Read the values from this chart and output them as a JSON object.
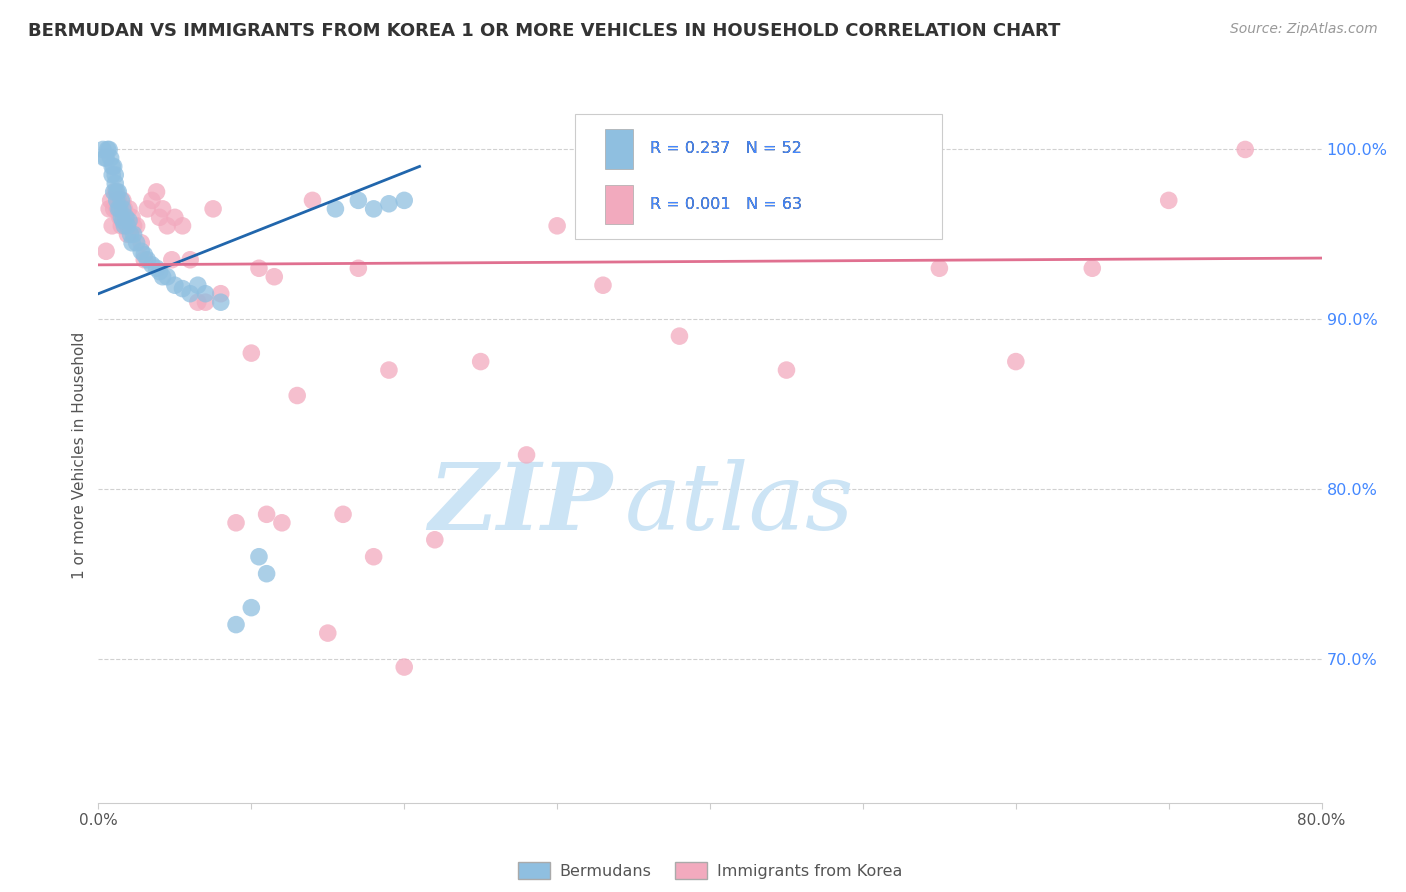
{
  "title": "BERMUDAN VS IMMIGRANTS FROM KOREA 1 OR MORE VEHICLES IN HOUSEHOLD CORRELATION CHART",
  "source": "Source: ZipAtlas.com",
  "ylabel": "1 or more Vehicles in Household",
  "xlim": [
    0.0,
    0.8
  ],
  "ylim": [
    0.615,
    1.025
  ],
  "legend_blue_R": "R = 0.237",
  "legend_blue_N": "N = 52",
  "legend_pink_R": "R = 0.001",
  "legend_pink_N": "N = 63",
  "legend_label_blue": "Bermudans",
  "legend_label_pink": "Immigrants from Korea",
  "blue_scatter_x": [
    0.003,
    0.004,
    0.005,
    0.006,
    0.007,
    0.008,
    0.009,
    0.009,
    0.01,
    0.01,
    0.011,
    0.011,
    0.012,
    0.012,
    0.013,
    0.013,
    0.014,
    0.015,
    0.015,
    0.016,
    0.016,
    0.017,
    0.018,
    0.019,
    0.02,
    0.021,
    0.022,
    0.023,
    0.025,
    0.028,
    0.03,
    0.032,
    0.035,
    0.038,
    0.04,
    0.042,
    0.045,
    0.05,
    0.055,
    0.06,
    0.065,
    0.07,
    0.08,
    0.09,
    0.1,
    0.105,
    0.11,
    0.155,
    0.17,
    0.18,
    0.19,
    0.2
  ],
  "blue_scatter_y": [
    1.0,
    0.995,
    0.995,
    1.0,
    1.0,
    0.995,
    0.99,
    0.985,
    0.99,
    0.975,
    0.985,
    0.98,
    0.975,
    0.97,
    0.975,
    0.965,
    0.965,
    0.97,
    0.96,
    0.965,
    0.958,
    0.955,
    0.96,
    0.955,
    0.958,
    0.95,
    0.945,
    0.95,
    0.945,
    0.94,
    0.938,
    0.935,
    0.932,
    0.93,
    0.928,
    0.925,
    0.925,
    0.92,
    0.918,
    0.915,
    0.92,
    0.915,
    0.91,
    0.72,
    0.73,
    0.76,
    0.75,
    0.965,
    0.97,
    0.965,
    0.968,
    0.97
  ],
  "pink_scatter_x": [
    0.005,
    0.007,
    0.008,
    0.009,
    0.01,
    0.011,
    0.012,
    0.013,
    0.014,
    0.015,
    0.016,
    0.017,
    0.018,
    0.019,
    0.02,
    0.022,
    0.023,
    0.025,
    0.028,
    0.03,
    0.032,
    0.035,
    0.038,
    0.04,
    0.042,
    0.045,
    0.048,
    0.05,
    0.055,
    0.06,
    0.065,
    0.07,
    0.075,
    0.08,
    0.09,
    0.1,
    0.105,
    0.11,
    0.115,
    0.12,
    0.13,
    0.14,
    0.15,
    0.16,
    0.17,
    0.18,
    0.19,
    0.2,
    0.22,
    0.25,
    0.28,
    0.3,
    0.33,
    0.36,
    0.38,
    0.42,
    0.45,
    0.5,
    0.55,
    0.6,
    0.65,
    0.7,
    0.75
  ],
  "pink_scatter_y": [
    0.94,
    0.965,
    0.97,
    0.955,
    0.965,
    0.975,
    0.965,
    0.97,
    0.96,
    0.955,
    0.97,
    0.965,
    0.955,
    0.95,
    0.965,
    0.96,
    0.955,
    0.955,
    0.945,
    0.935,
    0.965,
    0.97,
    0.975,
    0.96,
    0.965,
    0.955,
    0.935,
    0.96,
    0.955,
    0.935,
    0.91,
    0.91,
    0.965,
    0.915,
    0.78,
    0.88,
    0.93,
    0.785,
    0.925,
    0.78,
    0.855,
    0.97,
    0.715,
    0.785,
    0.93,
    0.76,
    0.87,
    0.695,
    0.77,
    0.875,
    0.82,
    0.955,
    0.92,
    0.97,
    0.89,
    0.96,
    0.87,
    0.96,
    0.93,
    0.875,
    0.93,
    0.97,
    1.0
  ],
  "blue_line_x": [
    0.0,
    0.21
  ],
  "blue_line_y": [
    0.915,
    0.99
  ],
  "pink_line_x": [
    0.0,
    0.8
  ],
  "pink_line_y": [
    0.932,
    0.936
  ],
  "grid_color": "#cccccc",
  "blue_color": "#8fbfe0",
  "pink_color": "#f2aabe",
  "blue_line_color": "#2166ac",
  "pink_line_color": "#e07090",
  "title_fontsize": 13,
  "source_color": "#999999",
  "right_tick_color": "#4488ff",
  "background_color": "#ffffff",
  "watermark_zip": "ZIP",
  "watermark_atlas": "atlas",
  "watermark_color": "#cce4f5"
}
